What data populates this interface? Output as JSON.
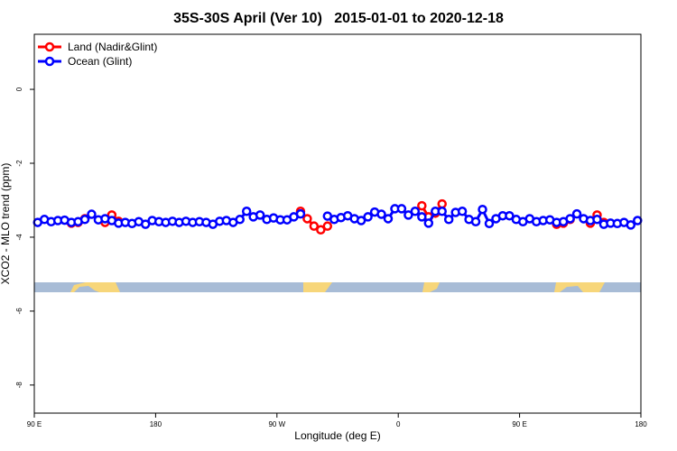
{
  "chart_data": {
    "type": "line",
    "title": "35S-30S April (Ver 10)   2015-01-01 to 2020-12-18",
    "x_label": "Longitude (deg E)",
    "y_label": "XCO2 - MLO trend (ppm)",
    "legend": "topleft",
    "xlim": [
      90,
      540
    ],
    "ylim": [
      -8.76,
      1.49
    ],
    "xticks": [
      {
        "value": 90,
        "label": "90 E"
      },
      180,
      {
        "value": 270,
        "label": "90 W"
      },
      {
        "value": 360,
        "label": "0"
      },
      {
        "value": 450,
        "label": "90 E"
      },
      {
        "value": 540,
        "label": "180"
      }
    ],
    "yticks": [
      0,
      -2,
      -4,
      -6,
      -8
    ],
    "x": [
      92.5,
      97.5,
      102.5,
      107.5,
      112.5,
      117.5,
      122.5,
      127.5,
      132.5,
      137.5,
      142.5,
      147.5,
      152.5,
      157.5,
      162.5,
      167.5,
      172.5,
      177.5,
      182.5,
      187.5,
      192.5,
      197.5,
      202.5,
      207.5,
      212.5,
      217.5,
      222.5,
      227.5,
      232.5,
      237.5,
      242.5,
      247.5,
      252.5,
      257.5,
      262.5,
      267.5,
      272.5,
      277.5,
      282.5,
      287.5,
      292.5,
      297.5,
      302.5,
      307.5,
      312.5,
      317.5,
      322.5,
      327.5,
      332.5,
      337.5,
      342.5,
      347.5,
      352.5,
      357.5,
      362.5,
      367.5,
      372.5,
      377.5,
      382.5,
      387.5,
      392.5,
      397.5,
      402.5,
      407.5,
      412.5,
      417.5,
      422.5,
      427.5,
      432.5,
      437.5,
      442.5,
      447.5,
      452.5,
      457.5,
      462.5,
      467.5,
      472.5,
      477.5,
      482.5,
      487.5,
      492.5,
      497.5,
      502.5,
      507.5,
      512.5,
      517.5,
      522.5,
      527.5,
      532.5,
      537.5
    ],
    "series": [
      {
        "name": "Land (Nadir&Glint)",
        "color": "#ff0000",
        "values": [
          null,
          null,
          null,
          null,
          null,
          -3.62,
          -3.6,
          -3.5,
          null,
          null,
          -3.6,
          -3.4,
          -3.57,
          null,
          null,
          null,
          null,
          null,
          null,
          null,
          null,
          null,
          null,
          null,
          null,
          null,
          null,
          null,
          null,
          null,
          null,
          null,
          null,
          null,
          null,
          null,
          null,
          null,
          null,
          -3.3,
          -3.5,
          -3.7,
          -3.8,
          -3.7,
          null,
          null,
          null,
          null,
          null,
          null,
          null,
          null,
          null,
          null,
          null,
          null,
          null,
          -3.15,
          -3.45,
          -3.35,
          -3.1,
          null,
          null,
          null,
          null,
          null,
          null,
          null,
          null,
          null,
          null,
          null,
          null,
          null,
          null,
          null,
          null,
          -3.65,
          -3.62,
          -3.52,
          null,
          null,
          -3.62,
          -3.4,
          -3.6,
          null,
          null,
          null,
          null,
          null
        ]
      },
      {
        "name": "Ocean (Glint)",
        "color": "#0000ff",
        "values": [
          -3.6,
          -3.52,
          -3.58,
          -3.55,
          -3.54,
          -3.6,
          -3.58,
          -3.52,
          -3.38,
          -3.53,
          -3.5,
          -3.55,
          -3.62,
          -3.6,
          -3.63,
          -3.58,
          -3.65,
          -3.55,
          -3.58,
          -3.6,
          -3.57,
          -3.6,
          -3.57,
          -3.6,
          -3.58,
          -3.6,
          -3.65,
          -3.57,
          -3.55,
          -3.6,
          -3.52,
          -3.3,
          -3.45,
          -3.4,
          -3.52,
          -3.48,
          -3.53,
          -3.53,
          -3.45,
          -3.37,
          null,
          null,
          null,
          -3.43,
          -3.52,
          -3.47,
          -3.42,
          -3.5,
          -3.55,
          -3.45,
          -3.32,
          -3.38,
          -3.5,
          -3.23,
          -3.23,
          -3.4,
          -3.3,
          -3.45,
          -3.62,
          -3.3,
          -3.3,
          -3.52,
          -3.33,
          -3.3,
          -3.52,
          -3.58,
          -3.25,
          -3.63,
          -3.5,
          -3.42,
          -3.42,
          -3.52,
          -3.58,
          -3.5,
          -3.58,
          -3.55,
          -3.53,
          -3.6,
          -3.58,
          -3.5,
          -3.37,
          -3.5,
          -3.55,
          -3.52,
          -3.65,
          -3.62,
          -3.63,
          -3.6,
          -3.67,
          -3.55
        ]
      }
    ]
  }
}
